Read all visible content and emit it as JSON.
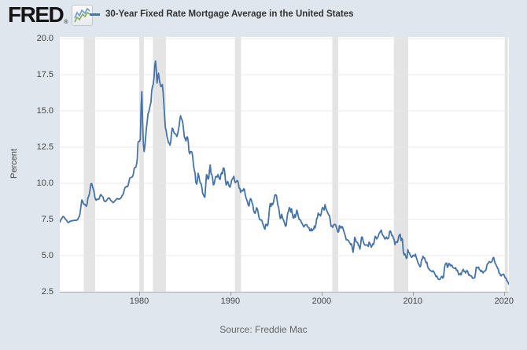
{
  "header": {
    "logo_text": "FRED",
    "registered_mark": "®",
    "logo_icon": "sparkline-chart-icon",
    "legend": {
      "series_label": "30-Year Fixed Rate Mortgage Average in the United States",
      "series_color": "#4572a7"
    }
  },
  "footer": {
    "source_label": "Source: Freddie Mac"
  },
  "chart_data": {
    "type": "line",
    "title": "30-Year Fixed Rate Mortgage Average in the United States",
    "xlabel": "",
    "ylabel": "Percent",
    "x_ticks": [
      "1980",
      "1990",
      "2000",
      "2010",
      "2020"
    ],
    "y_ticks": [
      "20.0",
      "17.5",
      "15.0",
      "12.5",
      "10.0",
      "7.5",
      "5.0",
      "2.5"
    ],
    "x_range": [
      1971.29,
      2020.54
    ],
    "y_range": [
      2.5,
      20.0
    ],
    "grid": true,
    "legend_position": "top",
    "grid_color": "#e8e8e8",
    "line_color": "#4572a7",
    "recession_shading_color": "#e4e4e4",
    "recessions": [
      [
        1973.92,
        1975.17
      ],
      [
        1980.0,
        1980.5
      ],
      [
        1981.5,
        1982.92
      ],
      [
        1990.5,
        1991.17
      ],
      [
        2001.17,
        2001.83
      ],
      [
        2007.92,
        2009.5
      ],
      [
        2020.08,
        2020.42
      ]
    ],
    "series": [
      {
        "name": "30-Year Fixed Rate Mortgage Average in the United States",
        "units": "Percent",
        "frequency": "monthly",
        "start": 1971.29,
        "step": 0.0833333,
        "values": [
          7.31,
          7.43,
          7.53,
          7.6,
          7.7,
          7.69,
          7.63,
          7.55,
          7.48,
          7.44,
          7.33,
          7.3,
          7.29,
          7.37,
          7.37,
          7.4,
          7.4,
          7.42,
          7.42,
          7.43,
          7.44,
          7.44,
          7.44,
          7.46,
          7.54,
          7.65,
          7.73,
          8.05,
          8.5,
          8.85,
          8.77,
          8.58,
          8.54,
          8.54,
          8.46,
          8.41,
          8.58,
          8.97,
          9.09,
          9.28,
          9.59,
          9.96,
          9.98,
          9.79,
          9.62,
          9.43,
          9.1,
          8.89,
          8.82,
          8.91,
          8.89,
          8.89,
          8.94,
          9.13,
          9.22,
          9.15,
          9.1,
          9.02,
          8.81,
          8.76,
          8.73,
          8.77,
          8.85,
          8.93,
          8.98,
          8.98,
          8.93,
          8.81,
          8.79,
          8.72,
          8.67,
          8.69,
          8.75,
          8.83,
          8.86,
          8.94,
          8.94,
          8.9,
          8.92,
          8.92,
          8.96,
          9.02,
          9.16,
          9.2,
          9.36,
          9.57,
          9.71,
          9.74,
          9.79,
          9.76,
          9.86,
          10.11,
          10.35,
          10.39,
          10.41,
          10.43,
          10.5,
          10.69,
          11.04,
          11.09,
          11.09,
          11.3,
          11.64,
          12.83,
          12.9,
          12.88,
          13.04,
          15.28,
          16.33,
          14.26,
          12.71,
          12.19,
          12.56,
          13.2,
          13.79,
          14.21,
          14.79,
          14.9,
          15.13,
          15.4,
          15.58,
          16.4,
          16.7,
          16.83,
          17.28,
          18.16,
          18.45,
          17.82,
          16.92,
          17.4,
          17.6,
          17.16,
          16.89,
          16.68,
          16.7,
          16.82,
          16.27,
          15.43,
          14.61,
          13.83,
          13.62,
          13.25,
          13.04,
          12.8,
          12.78,
          12.63,
          12.87,
          13.44,
          13.81,
          13.73,
          13.54,
          13.44,
          13.42,
          13.37,
          13.23,
          13.39,
          13.65,
          13.94,
          14.42,
          14.67,
          14.47,
          14.35,
          14.13,
          13.64,
          13.18,
          13.08,
          12.92,
          13.17,
          13.2,
          12.91,
          12.22,
          12.03,
          12.19,
          12.19,
          12.14,
          11.78,
          11.26,
          10.89,
          10.71,
          10.08,
          9.94,
          10.15,
          10.69,
          10.51,
          10.2,
          10.01,
          9.97,
          9.7,
          9.31,
          9.2,
          9.08,
          9.04,
          9.83,
          10.6,
          10.54,
          10.28,
          10.33,
          10.89,
          11.26,
          10.65,
          10.64,
          10.38,
          9.89,
          9.93,
          10.2,
          10.46,
          10.46,
          10.43,
          10.6,
          10.48,
          10.3,
          10.27,
          10.61,
          10.73,
          10.65,
          11.03,
          11.05,
          10.77,
          10.2,
          9.88,
          9.99,
          10.13,
          9.95,
          9.77,
          9.74,
          9.9,
          10.2,
          10.27,
          10.37,
          10.48,
          10.16,
          10.04,
          10.1,
          10.18,
          10.17,
          10.01,
          9.67,
          9.64,
          9.37,
          9.5,
          9.49,
          9.47,
          9.62,
          9.58,
          9.24,
          9.01,
          8.86,
          8.71,
          8.5,
          8.43,
          8.76,
          8.94,
          8.85,
          8.67,
          8.51,
          8.13,
          7.98,
          7.92,
          8.09,
          8.31,
          8.22,
          7.99,
          7.68,
          7.5,
          7.46,
          7.47,
          7.42,
          7.21,
          7.11,
          6.92,
          6.83,
          7.16,
          7.17,
          7.06,
          7.15,
          7.68,
          8.32,
          8.6,
          8.4,
          8.61,
          8.51,
          8.64,
          8.93,
          9.17,
          9.2,
          9.15,
          8.83,
          8.46,
          8.32,
          7.96,
          7.57,
          7.61,
          7.86,
          7.64,
          7.48,
          7.38,
          7.2,
          7.03,
          7.08,
          7.62,
          7.93,
          8.07,
          8.32,
          8.25,
          8.0,
          8.23,
          7.92,
          7.62,
          7.6,
          7.82,
          7.65,
          7.9,
          8.14,
          7.94,
          7.69,
          7.5,
          7.48,
          7.43,
          7.29,
          7.21,
          7.1,
          6.99,
          7.04,
          7.13,
          7.14,
          7.14,
          7.0,
          6.95,
          6.92,
          6.72,
          6.71,
          6.87,
          6.72,
          6.79,
          6.81,
          7.04,
          6.92,
          7.15,
          7.55,
          7.63,
          7.94,
          7.82,
          7.85,
          7.74,
          7.91,
          8.21,
          8.33,
          8.24,
          8.15,
          8.52,
          8.29,
          8.15,
          8.03,
          7.91,
          7.8,
          7.75,
          7.38,
          7.03,
          7.05,
          6.95,
          7.08,
          7.15,
          7.16,
          7.13,
          6.95,
          6.82,
          6.62,
          6.66,
          7.07,
          7.0,
          6.89,
          7.01,
          6.99,
          6.81,
          6.65,
          6.49,
          6.29,
          6.09,
          6.11,
          6.07,
          6.05,
          5.92,
          5.84,
          5.75,
          5.81,
          5.48,
          5.23,
          5.63,
          6.26,
          6.15,
          5.95,
          5.93,
          5.88,
          5.71,
          5.64,
          5.45,
          5.83,
          6.27,
          6.29,
          6.06,
          5.87,
          5.75,
          5.72,
          5.73,
          5.75,
          5.71,
          5.63,
          5.93,
          5.86,
          5.72,
          5.58,
          5.7,
          5.82,
          5.77,
          6.07,
          6.33,
          6.27,
          6.15,
          6.25,
          6.32,
          6.51,
          6.6,
          6.68,
          6.76,
          6.52,
          6.4,
          6.36,
          6.24,
          6.14,
          6.22,
          6.29,
          6.16,
          6.18,
          6.26,
          6.66,
          6.7,
          6.57,
          6.38,
          6.38,
          6.21,
          6.1,
          5.76,
          5.92,
          5.97,
          5.92,
          6.04,
          6.32,
          6.43,
          6.48,
          6.04,
          6.2,
          6.09,
          5.29,
          5.05,
          5.13,
          5.0,
          4.81,
          4.86,
          5.42,
          5.22,
          5.19,
          5.06,
          4.95,
          4.88,
          4.93,
          5.03,
          4.99,
          4.97,
          5.1,
          4.89,
          4.74,
          4.56,
          4.43,
          4.35,
          4.23,
          4.3,
          4.71,
          4.76,
          4.95,
          4.84,
          4.84,
          4.64,
          4.51,
          4.55,
          4.27,
          4.11,
          4.07,
          3.99,
          3.96,
          3.92,
          3.89,
          3.95,
          3.91,
          3.8,
          3.68,
          3.55,
          3.6,
          3.5,
          3.38,
          3.35,
          3.35,
          3.41,
          3.53,
          3.57,
          3.45,
          3.54,
          4.07,
          4.37,
          4.46,
          4.49,
          4.19,
          4.26,
          4.46,
          4.43,
          4.3,
          4.34,
          4.34,
          4.19,
          4.16,
          4.13,
          4.12,
          4.16,
          3.98,
          4.0,
          3.86,
          3.67,
          3.71,
          3.77,
          3.67,
          3.84,
          3.98,
          4.05,
          3.91,
          3.89,
          3.8,
          3.94,
          3.96,
          3.87,
          3.66,
          3.69,
          3.61,
          3.6,
          3.57,
          3.44,
          3.44,
          3.46,
          3.47,
          3.77,
          4.2,
          4.15,
          4.17,
          4.2,
          4.05,
          4.01,
          3.9,
          3.97,
          3.88,
          3.81,
          3.9,
          3.92,
          3.95,
          4.03,
          4.33,
          4.44,
          4.47,
          4.59,
          4.57,
          4.53,
          4.55,
          4.63,
          4.83,
          4.87,
          4.64,
          4.46,
          4.37,
          4.27,
          4.14,
          4.07,
          3.8,
          3.77,
          3.62,
          3.61,
          3.69,
          3.7,
          3.72,
          3.62,
          3.47,
          3.45,
          3.31,
          3.23,
          3.16,
          3.02
        ]
      }
    ]
  }
}
